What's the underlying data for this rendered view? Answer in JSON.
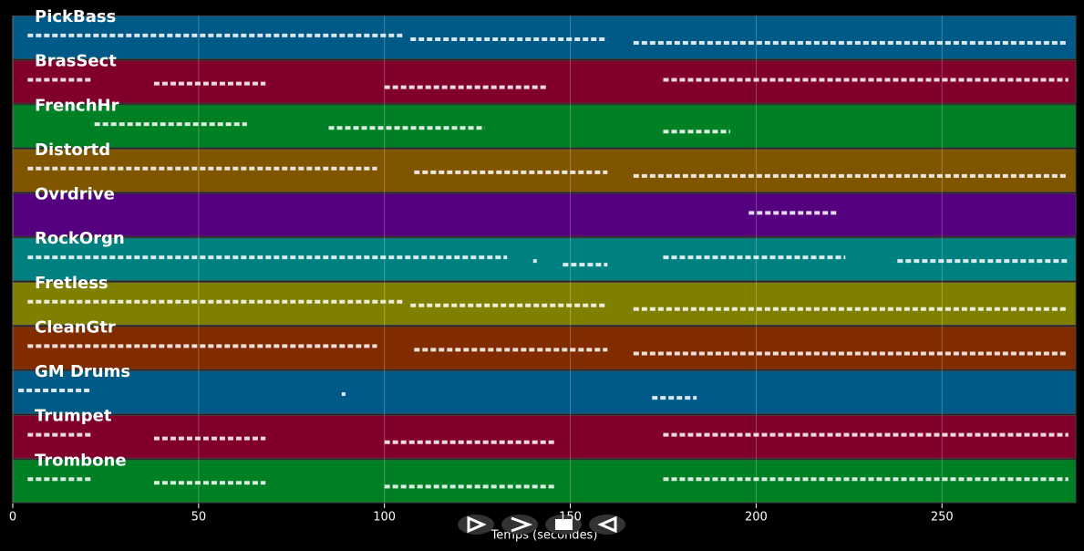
{
  "chart_data": {
    "type": "piano-roll",
    "xlabel": "Temps (secondes)",
    "xlim": [
      0,
      286
    ],
    "xticks": [
      0,
      50,
      100,
      150,
      200,
      250
    ],
    "grid": true,
    "series": [
      {
        "name": "PickBass",
        "color": "#005a87",
        "segments": [
          [
            4,
            105
          ],
          [
            107,
            160
          ],
          [
            167,
            284
          ]
        ]
      },
      {
        "name": "BrasSect",
        "color": "#80002b",
        "segments": [
          [
            4,
            21
          ],
          [
            38,
            68
          ],
          [
            100,
            144
          ],
          [
            175,
            284
          ]
        ]
      },
      {
        "name": "FrenchHr",
        "color": "#008025",
        "segments": [
          [
            22,
            63
          ],
          [
            85,
            127
          ],
          [
            175,
            193
          ]
        ]
      },
      {
        "name": "Distortd",
        "color": "#805500",
        "segments": [
          [
            4,
            98
          ],
          [
            108,
            160
          ],
          [
            167,
            284
          ]
        ]
      },
      {
        "name": "Ovrdrive",
        "color": "#55007f",
        "segments": [
          [
            198,
            222
          ]
        ]
      },
      {
        "name": "RockOrgn",
        "color": "#008080",
        "segments": [
          [
            4,
            133
          ],
          [
            140,
            141
          ],
          [
            148,
            160
          ],
          [
            175,
            224
          ],
          [
            238,
            284
          ]
        ]
      },
      {
        "name": "Fretless",
        "color": "#808000",
        "segments": [
          [
            4,
            105
          ],
          [
            107,
            160
          ],
          [
            167,
            284
          ]
        ]
      },
      {
        "name": "CleanGtr",
        "color": "#802b00",
        "segments": [
          [
            4,
            98
          ],
          [
            108,
            160
          ],
          [
            167,
            284
          ]
        ]
      },
      {
        "name": "GM Drums",
        "color": "#005a87",
        "segments": [
          [
            1.5,
            21
          ],
          [
            88.5,
            89.5
          ],
          [
            172,
            184
          ]
        ]
      },
      {
        "name": "Trumpet",
        "color": "#80002b",
        "segments": [
          [
            4,
            21
          ],
          [
            38,
            68
          ],
          [
            100,
            146
          ],
          [
            175,
            284
          ]
        ]
      },
      {
        "name": "Trombone",
        "color": "#008025",
        "segments": [
          [
            4,
            21
          ],
          [
            38,
            68
          ],
          [
            100,
            146
          ],
          [
            175,
            284
          ]
        ]
      }
    ]
  }
}
